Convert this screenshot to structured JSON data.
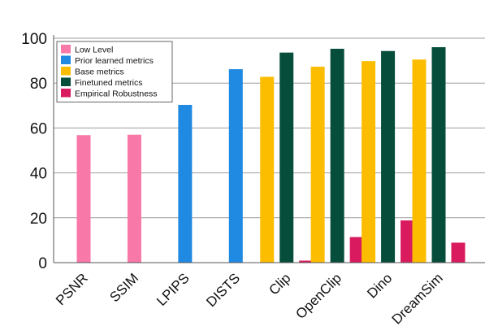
{
  "chart_data": {
    "type": "bar",
    "title": "",
    "xlabel": "",
    "ylabel": "",
    "ylim": [
      0,
      100
    ],
    "yticks": [
      0,
      20,
      40,
      60,
      80,
      100
    ],
    "grid": "horizontal",
    "legend_position": "top-left",
    "legend": [
      {
        "label": "Low Level",
        "color": "#f878a8"
      },
      {
        "label": "Prior learned metrics",
        "color": "#2089e2"
      },
      {
        "label": "Base metrics",
        "color": "#fcbd00"
      },
      {
        "label": "Finetuned metrics",
        "color": "#064d3c"
      },
      {
        "label": "Empirical Robustness",
        "color": "#d91a5e"
      }
    ],
    "groups": [
      {
        "label": "PSNR",
        "bars": [
          {
            "series": "Low Level",
            "value": 56.8
          }
        ]
      },
      {
        "label": "SSIM",
        "bars": [
          {
            "series": "Low Level",
            "value": 57.0
          }
        ]
      },
      {
        "label": "LPIPS",
        "bars": [
          {
            "series": "Prior learned metrics",
            "value": 70.3
          }
        ]
      },
      {
        "label": "DISTS",
        "bars": [
          {
            "series": "Prior learned metrics",
            "value": 86.2
          }
        ]
      },
      {
        "label": "Clip",
        "bars": [
          {
            "series": "Base metrics",
            "value": 82.8
          },
          {
            "series": "Finetuned metrics",
            "value": 93.6
          },
          {
            "series": "Empirical Robustness",
            "value": 0.9
          }
        ]
      },
      {
        "label": "OpenClip",
        "bars": [
          {
            "series": "Base metrics",
            "value": 87.3
          },
          {
            "series": "Finetuned metrics",
            "value": 95.3
          },
          {
            "series": "Empirical Robustness",
            "value": 11.4
          }
        ]
      },
      {
        "label": "Dino",
        "bars": [
          {
            "series": "Base metrics",
            "value": 89.8
          },
          {
            "series": "Finetuned metrics",
            "value": 94.3
          },
          {
            "series": "Empirical Robustness",
            "value": 18.8
          }
        ]
      },
      {
        "label": "DreamSim",
        "bars": [
          {
            "series": "Base metrics",
            "value": 90.5
          },
          {
            "series": "Finetuned metrics",
            "value": 96.0
          },
          {
            "series": "Empirical Robustness",
            "value": 8.9
          }
        ]
      }
    ]
  }
}
